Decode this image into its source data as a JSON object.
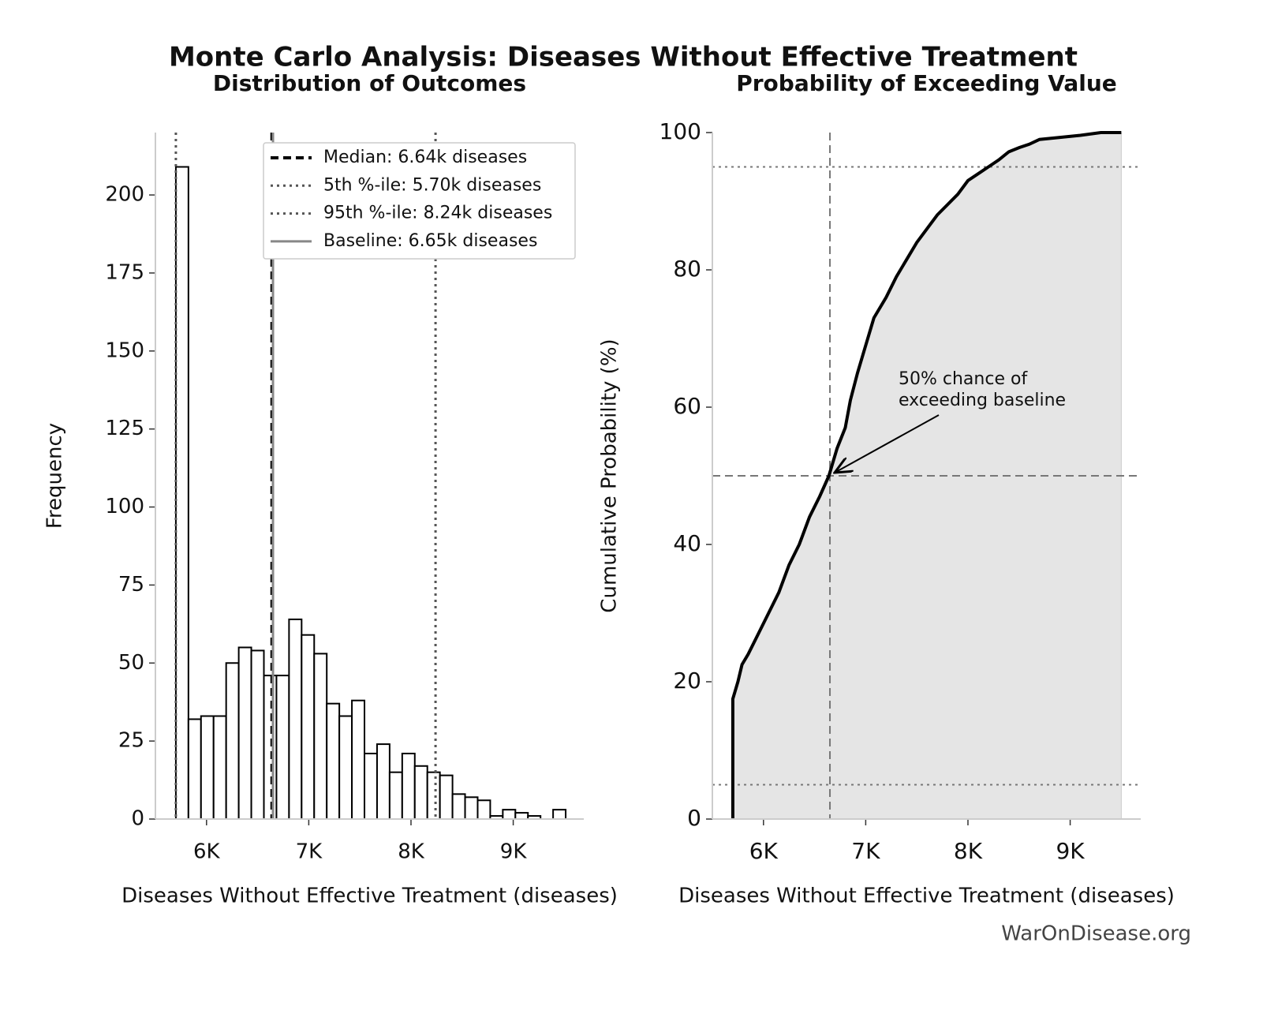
{
  "title": "Monte Carlo Analysis: Diseases Without Effective Treatment",
  "footer": "WarOnDisease.org",
  "chart_data": [
    {
      "type": "histogram",
      "title": "Distribution of Outcomes",
      "xlabel": "Diseases Without Effective Treatment (diseases)",
      "ylabel": "Frequency",
      "bins": [
        5700,
        5823,
        5946,
        6069,
        6192,
        6315,
        6438,
        6561,
        6684,
        6807,
        6930,
        7053,
        7176,
        7299,
        7422,
        7545,
        7668,
        7791,
        7914,
        8037,
        8160,
        8283,
        8406,
        8529,
        8652,
        8775,
        8898,
        9021,
        9144,
        9267,
        9390,
        9513
      ],
      "counts": [
        209,
        32,
        33,
        33,
        50,
        55,
        54,
        46,
        46,
        64,
        59,
        53,
        37,
        33,
        38,
        21,
        24,
        15,
        21,
        17,
        15,
        14,
        8,
        7,
        6,
        1,
        3,
        2,
        1,
        0,
        3
      ],
      "color": "#ffffff",
      "edgecolor": "#000000",
      "xlim": [
        5500,
        9690
      ],
      "ylim": [
        0,
        220
      ],
      "xticks": [
        {
          "value": 6000,
          "label": "6K"
        },
        {
          "value": 7000,
          "label": "7K"
        },
        {
          "value": 8000,
          "label": "8K"
        },
        {
          "value": 9000,
          "label": "9K"
        }
      ],
      "yticks": [
        0,
        25,
        50,
        75,
        100,
        125,
        150,
        175,
        200
      ],
      "reference_lines": [
        {
          "name": "Median: 6.64k diseases",
          "value": 6640,
          "color": "#000000",
          "style": "dashed"
        },
        {
          "name": "5th %-ile: 5.70k diseases",
          "value": 5700,
          "color": "#555555",
          "style": "dotted"
        },
        {
          "name": "95th %-ile: 8.24k diseases",
          "value": 8240,
          "color": "#555555",
          "style": "dotted"
        },
        {
          "name": "Baseline: 6.65k diseases",
          "value": 6650,
          "color": "#888888",
          "style": "solid"
        }
      ],
      "legend": "upper right"
    },
    {
      "type": "line",
      "title": "Probability of Exceeding Value",
      "xlabel": "Diseases Without Effective Treatment (diseases)",
      "ylabel": "Cumulative Probability (%)",
      "x": [
        5700,
        5700,
        5720,
        5750,
        5790,
        5850,
        5950,
        6050,
        6150,
        6250,
        6350,
        6450,
        6550,
        6640,
        6720,
        6800,
        6850,
        6920,
        7000,
        7080,
        7200,
        7300,
        7400,
        7500,
        7600,
        7700,
        7800,
        7900,
        8000,
        8100,
        8200,
        8300,
        8400,
        8500,
        8600,
        8700,
        8900,
        9100,
        9300,
        9500
      ],
      "values": [
        0,
        17.5,
        18.5,
        20,
        22.5,
        24,
        27,
        30,
        33,
        37,
        40,
        44,
        47,
        50,
        54,
        57,
        61,
        65,
        69,
        73,
        76,
        79,
        81.5,
        84,
        86,
        88,
        89.5,
        91,
        93,
        94,
        95,
        96,
        97.2,
        97.8,
        98.3,
        99,
        99.3,
        99.6,
        100,
        100
      ],
      "color": "#000000",
      "fill": "#e5e5e5",
      "xlim": [
        5500,
        9690
      ],
      "ylim": [
        0,
        100
      ],
      "xticks": [
        {
          "value": 6000,
          "label": "6K"
        },
        {
          "value": 7000,
          "label": "7K"
        },
        {
          "value": 8000,
          "label": "8K"
        },
        {
          "value": 9000,
          "label": "9K"
        }
      ],
      "yticks": [
        0,
        20,
        40,
        60,
        80,
        100
      ],
      "vlines": [
        {
          "value": 6650,
          "color": "#777777",
          "style": "dashed"
        }
      ],
      "hlines": [
        {
          "value": 95,
          "color": "#777777",
          "style": "dotted"
        },
        {
          "value": 5,
          "color": "#777777",
          "style": "dotted"
        },
        {
          "value": 50,
          "color": "#777777",
          "style": "dashed"
        }
      ],
      "annotation": [
        "50% chance of",
        "exceeding baseline"
      ]
    }
  ]
}
